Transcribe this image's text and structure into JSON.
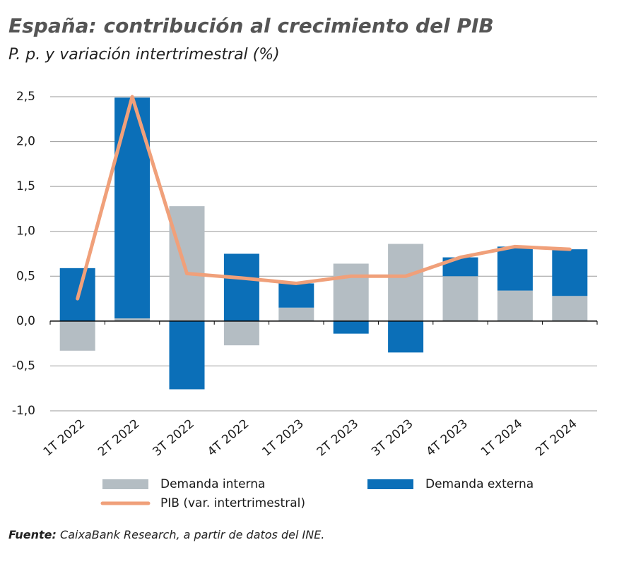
{
  "chart_data": {
    "type": "bar",
    "stacked": true,
    "title": "España: contribución al crecimiento del PIB",
    "subtitle": "P. p. y variación intertrimestral (%)",
    "source_label": "Fuente:",
    "source": "CaixaBank Research, a partir de datos del INE.",
    "categories": [
      "1T 2022",
      "2T 2022",
      "3T 2022",
      "4T 2022",
      "1T 2023",
      "2T 2023",
      "3T 2023",
      "4T 2023",
      "1T 2024",
      "2T 2024"
    ],
    "series": [
      {
        "name": "Demanda interna",
        "type": "bar",
        "color": "#b4bdc3",
        "values": [
          -0.33,
          0.03,
          1.28,
          -0.27,
          0.15,
          0.64,
          0.86,
          0.5,
          0.34,
          0.28
        ]
      },
      {
        "name": "Demanda externa",
        "type": "bar",
        "color": "#0b6fb8",
        "values": [
          0.59,
          2.46,
          -0.76,
          0.75,
          0.27,
          -0.14,
          -0.35,
          0.21,
          0.49,
          0.52
        ]
      },
      {
        "name": "PIB (var. intertrimestral)",
        "type": "line",
        "color": "#f0a07a",
        "values": [
          0.25,
          2.5,
          0.53,
          0.48,
          0.42,
          0.5,
          0.5,
          0.71,
          0.83,
          0.8
        ]
      }
    ],
    "ylim": [
      -1.0,
      2.5
    ],
    "yticks": [
      {
        "value": -1.0,
        "label": "-1,0"
      },
      {
        "value": -0.5,
        "label": "-0,5"
      },
      {
        "value": 0.0,
        "label": "0,0"
      },
      {
        "value": 0.5,
        "label": "0,5"
      },
      {
        "value": 1.0,
        "label": "1,0"
      },
      {
        "value": 1.5,
        "label": "1,5"
      },
      {
        "value": 2.0,
        "label": "2,0"
      },
      {
        "value": 2.5,
        "label": "2,5"
      }
    ],
    "grid": true
  }
}
